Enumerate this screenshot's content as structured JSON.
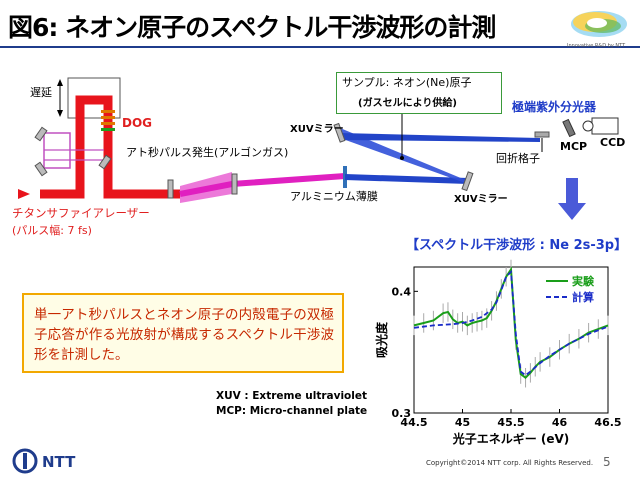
{
  "title": "図6: ネオン原子のスペクトル干渉波形の計測",
  "logo": {
    "caption": "Innovative R&D by NTT"
  },
  "diagram": {
    "delay": "遅延",
    "dog": "DOG",
    "attosecond": "アト秒パルス発生(アルゴンガス)",
    "laser": "チタンサファイアレーザー",
    "pulse_width": "(パルス幅: 7 fs)",
    "sample": "サンプル: ネオン(Ne)原子",
    "gas_cell": "(ガスセルにより供給)",
    "xuv_mirror": "XUVミラー",
    "aluminum": "アルミニウム薄膜",
    "spectrometer": "極端紫外分光器",
    "grating": "回折格子",
    "mcp": "MCP",
    "ccd": "CCD"
  },
  "note": "単一アト秒パルスとネオン原子の内殻電子の双極子応答が作る光放射が構成するスペクトル干渉波形を計測した。",
  "abbreviations": [
    "XUV : Extreme ultraviolet",
    "MCP: Micro-channel plate"
  ],
  "chart_title": "【スペクトル干渉波形 : Ne 2s-3p】",
  "chart_data": {
    "type": "line",
    "xlabel": "光子エネルギー (eV)",
    "ylabel": "吸光度",
    "xlim": [
      44.5,
      46.5
    ],
    "ylim": [
      0.3,
      0.42
    ],
    "xticks": [
      "44.5",
      "45",
      "45.5",
      "46",
      "46.5"
    ],
    "yticks": [
      "0.3",
      "0.4"
    ],
    "legend_position": "top-right",
    "series": [
      {
        "name": "実験",
        "color": "#1a9e1a",
        "style": "solid",
        "x": [
          44.5,
          44.6,
          44.7,
          44.8,
          44.85,
          44.9,
          44.95,
          45.0,
          45.05,
          45.1,
          45.15,
          45.2,
          45.25,
          45.3,
          45.35,
          45.4,
          45.45,
          45.5,
          45.55,
          45.6,
          45.65,
          45.7,
          45.75,
          45.8,
          45.9,
          46.0,
          46.1,
          46.2,
          46.3,
          46.4,
          46.5
        ],
        "y": [
          0.372,
          0.374,
          0.376,
          0.382,
          0.383,
          0.377,
          0.374,
          0.375,
          0.372,
          0.374,
          0.375,
          0.376,
          0.378,
          0.384,
          0.392,
          0.402,
          0.412,
          0.418,
          0.36,
          0.332,
          0.329,
          0.333,
          0.338,
          0.342,
          0.346,
          0.352,
          0.357,
          0.361,
          0.366,
          0.369,
          0.372
        ]
      },
      {
        "name": "計算",
        "color": "#1a2cc8",
        "style": "dashed",
        "x": [
          44.5,
          44.7,
          44.9,
          45.0,
          45.1,
          45.2,
          45.3,
          45.35,
          45.4,
          45.45,
          45.5,
          45.55,
          45.6,
          45.65,
          45.7,
          45.8,
          45.9,
          46.0,
          46.1,
          46.2,
          46.3,
          46.4,
          46.5
        ],
        "y": [
          0.37,
          0.372,
          0.373,
          0.374,
          0.376,
          0.379,
          0.385,
          0.391,
          0.401,
          0.412,
          0.416,
          0.365,
          0.334,
          0.331,
          0.334,
          0.341,
          0.347,
          0.352,
          0.357,
          0.361,
          0.365,
          0.368,
          0.371
        ]
      }
    ]
  },
  "footer": {
    "company": "NTT",
    "copyright": "Copyright©2014 NTT corp. All Rights Reserved.",
    "page": "5"
  }
}
